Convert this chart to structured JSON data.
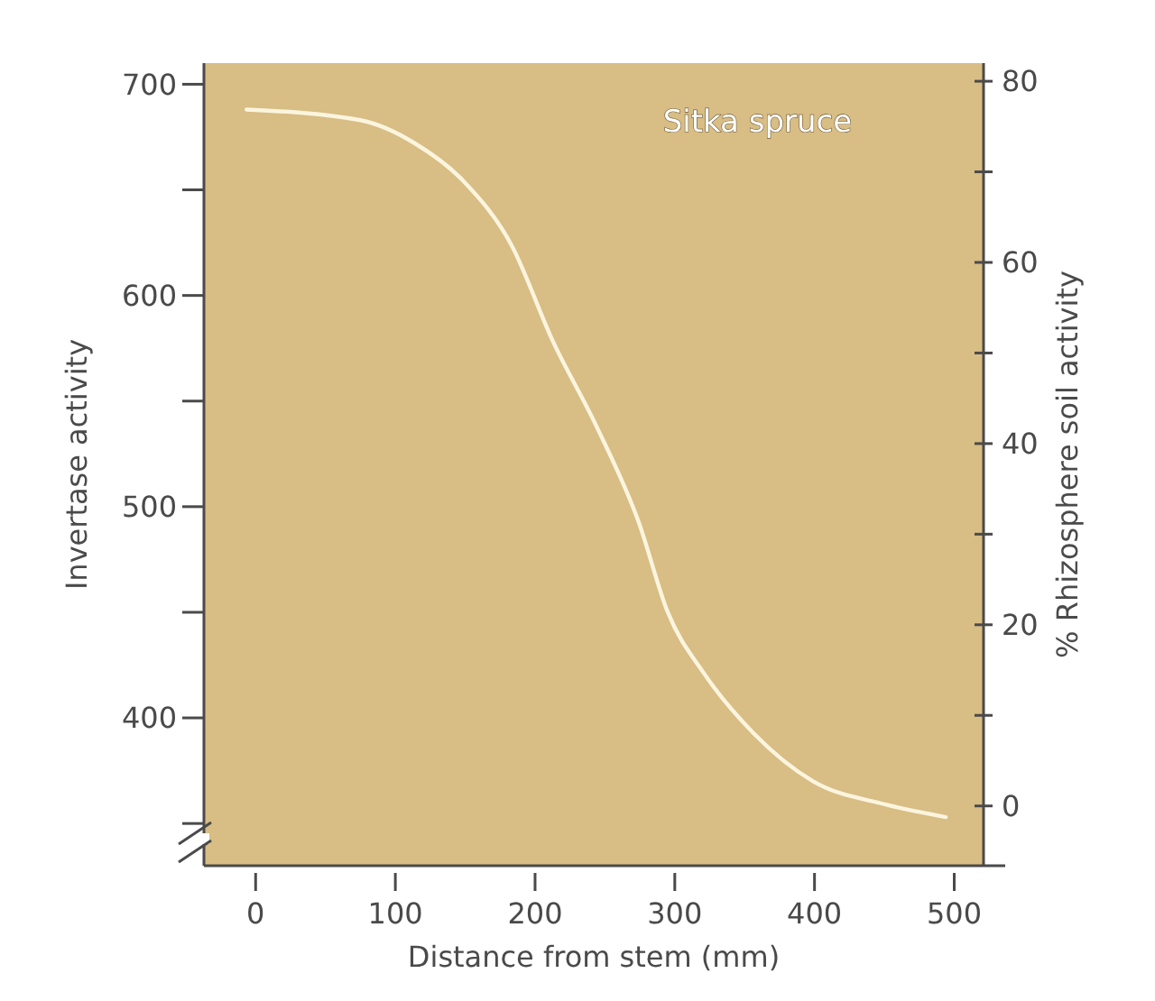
{
  "chart_data": {
    "type": "line",
    "xlabel": "Distance from stem (mm)",
    "ylabel": "Invertase activity",
    "y2label": "% Rhizosphere soil activity",
    "x": [
      -6.5,
      75,
      114,
      149,
      183,
      213,
      244,
      274,
      295,
      321,
      356,
      399,
      451,
      494
    ],
    "series": [
      {
        "name": "Sitka spruce",
        "color": "#fbf5df",
        "values": [
          688,
          683,
          672,
          654,
          624,
          578,
          538,
          493,
          450,
          421,
          393,
          370,
          359,
          353
        ]
      }
    ],
    "xlim": [
      -37,
      521
    ],
    "xticks": [
      0,
      100,
      200,
      300,
      400,
      500
    ],
    "ylim": [
      330,
      710
    ],
    "yticks": [
      {
        "value": 350,
        "label": null
      },
      400,
      {
        "value": 450,
        "label": null
      },
      500,
      {
        "value": 550,
        "label": null
      },
      600,
      {
        "value": 650,
        "label": null
      },
      700
    ],
    "y2lim": [
      -6.6,
      82
    ],
    "y2ticks": [
      0,
      {
        "value": 10,
        "label": null
      },
      20,
      {
        "value": 30,
        "label": null
      },
      40,
      {
        "value": 50,
        "label": null
      },
      60,
      {
        "value": 70,
        "label": null
      },
      80
    ],
    "marker": "none",
    "line_style": "solid",
    "grid": false
  }
}
